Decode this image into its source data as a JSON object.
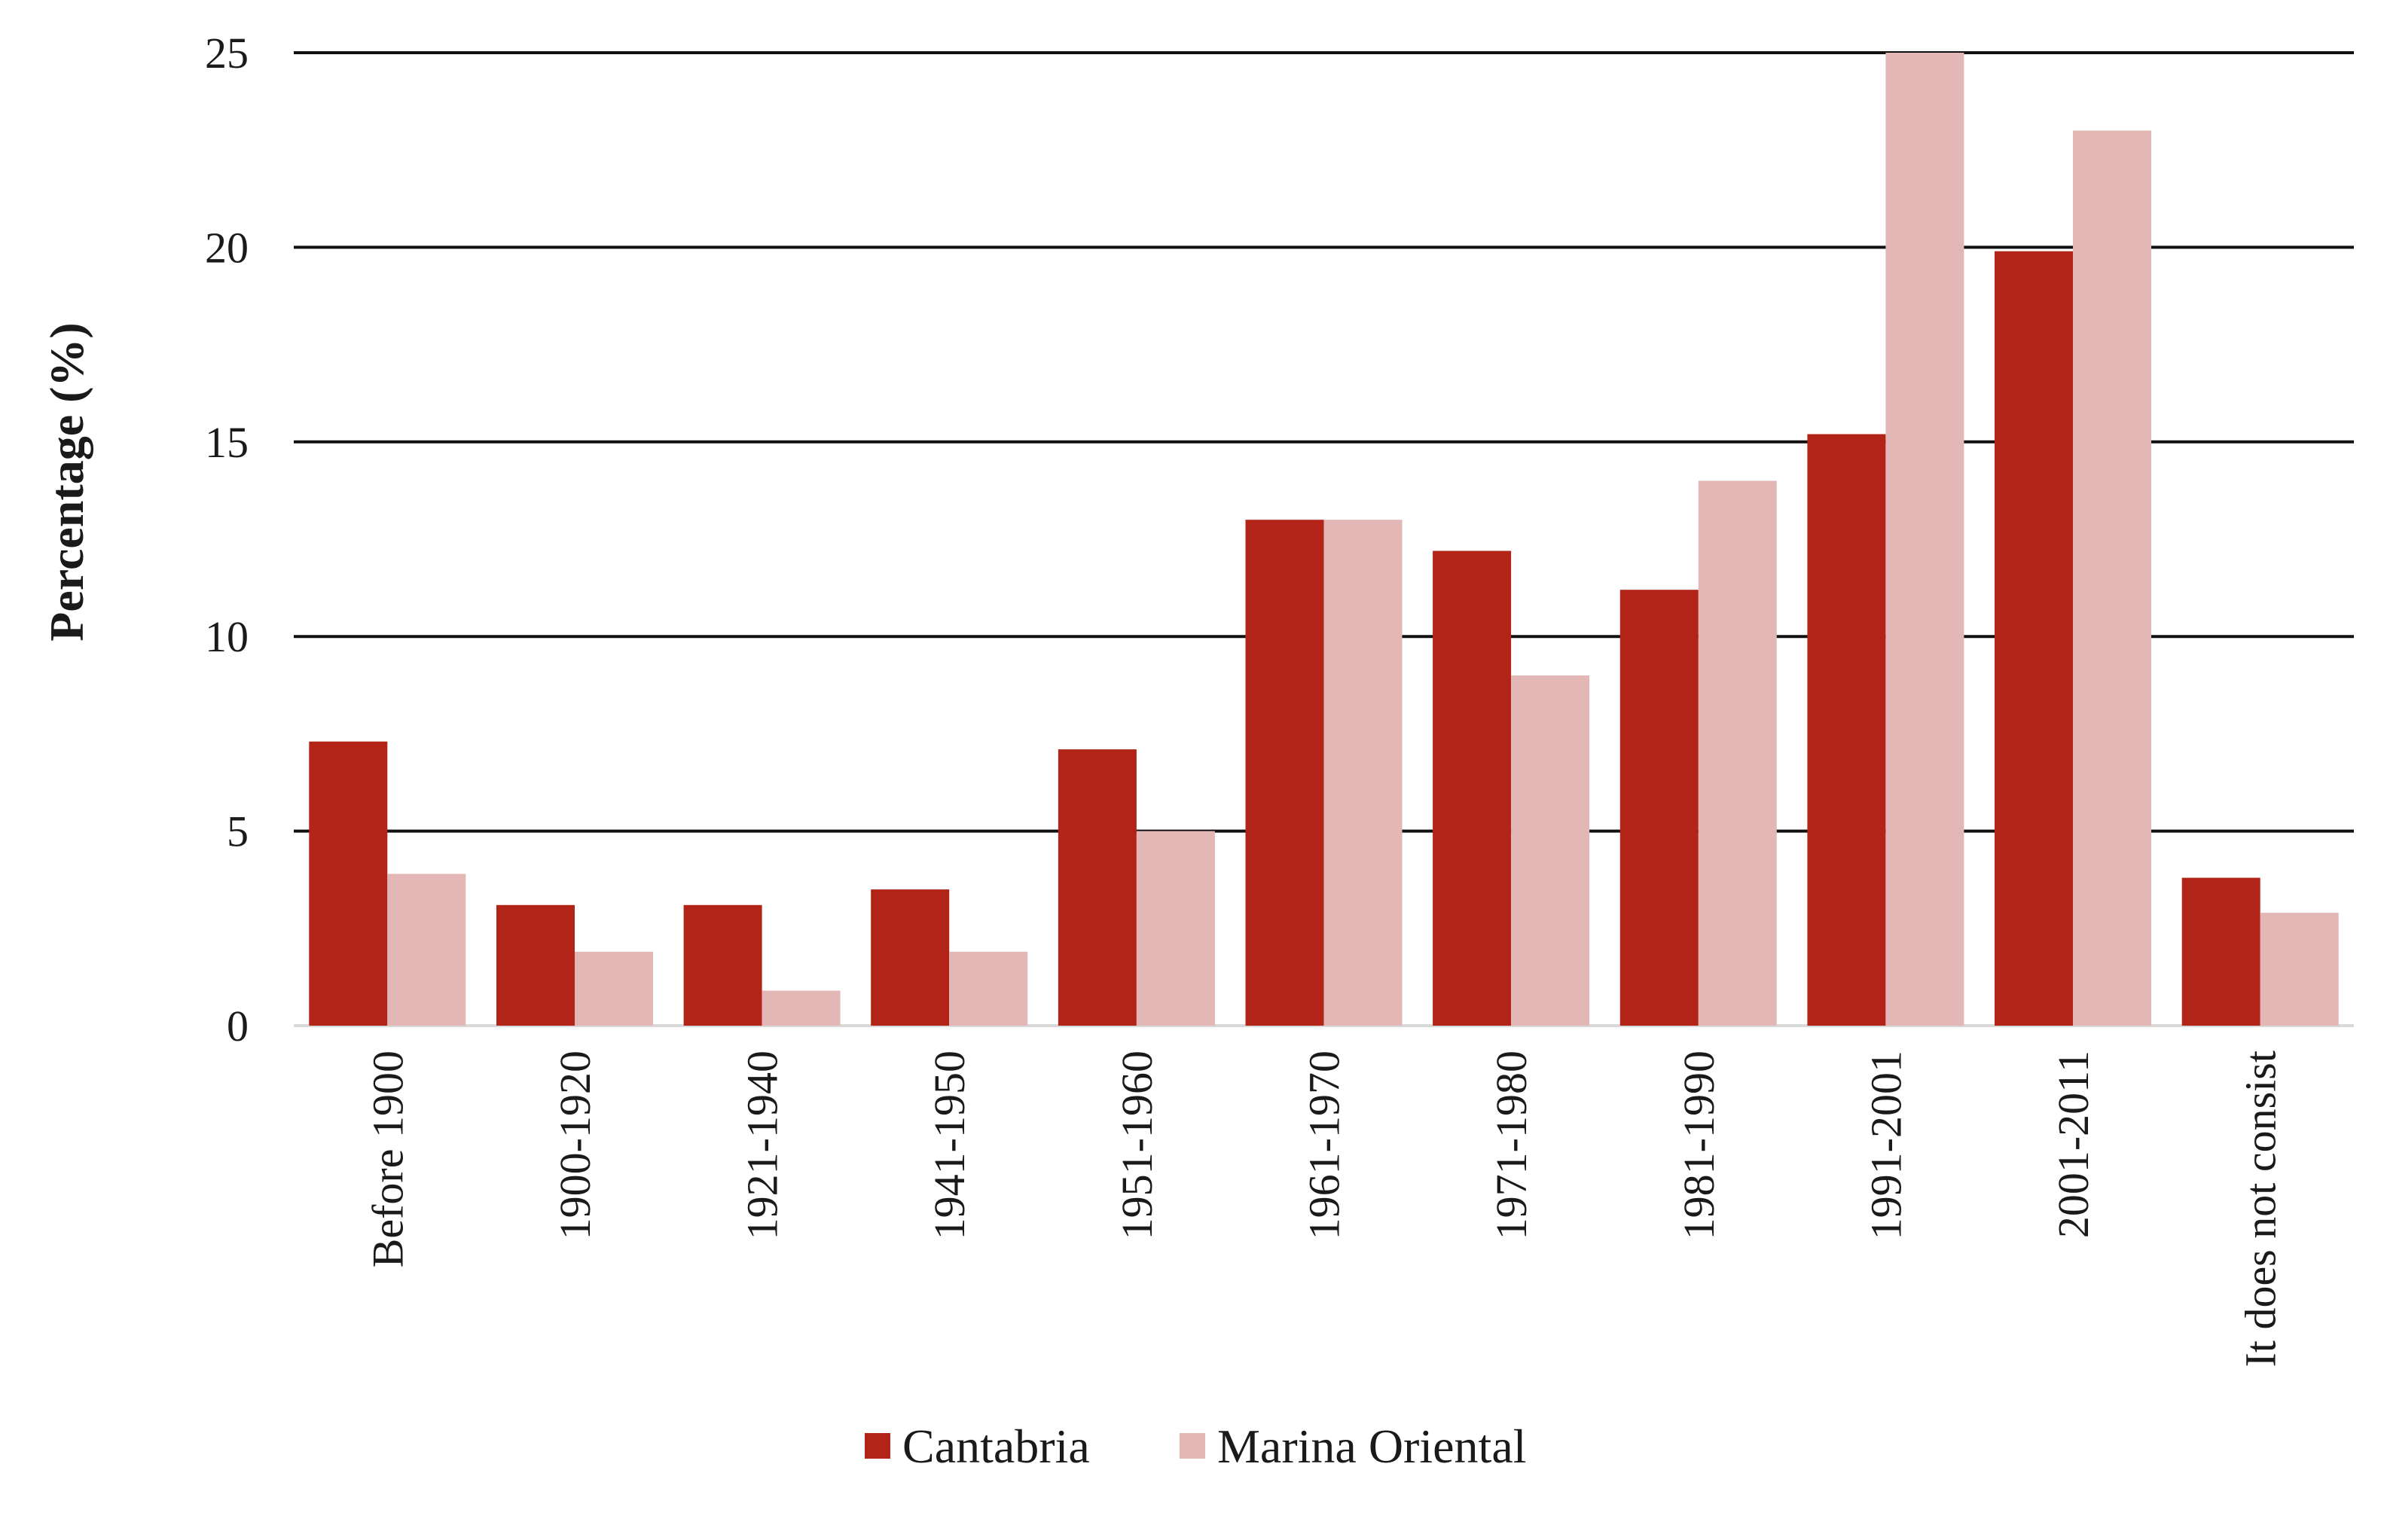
{
  "chart_data": {
    "type": "bar",
    "title": "",
    "xlabel": "",
    "ylabel": "Percentage (%)",
    "ylim": [
      0,
      25
    ],
    "yticks": [
      0,
      5,
      10,
      15,
      20,
      25
    ],
    "grid": true,
    "legend_position": "bottom",
    "categories": [
      "Before 1900",
      "1900-1920",
      "1921-1940",
      "1941-1950",
      "1951-1960",
      "1961-1970",
      "1971-1980",
      "1981-1990",
      "1991-2001",
      "2001-2011",
      "It does not consist"
    ],
    "series": [
      {
        "name": "Cantabria",
        "color": "#b22418",
        "values": [
          7.3,
          3.1,
          3.1,
          3.5,
          7.1,
          13.0,
          12.2,
          11.2,
          15.2,
          19.9,
          3.8
        ]
      },
      {
        "name": "Marina Oriental",
        "color": "#e3b7b6",
        "values": [
          3.9,
          1.9,
          0.9,
          1.9,
          5.0,
          13.0,
          9.0,
          14.0,
          25.0,
          23.0,
          2.9
        ]
      }
    ]
  }
}
